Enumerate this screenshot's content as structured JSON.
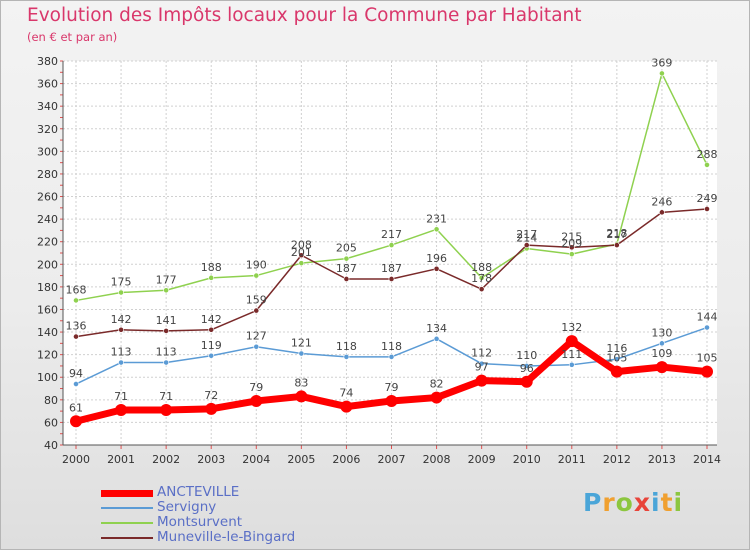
{
  "header": {
    "title": "Evolution des Impôts locaux pour la Commune par Habitant",
    "subtitle": "(en € et par an)"
  },
  "brand": {
    "text": "Proxiti",
    "letter_colors": [
      "#4aa5d8",
      "#f0a030",
      "#8cc63f",
      "#e8443a",
      "#4aa5d8",
      "#f0a030",
      "#8cc63f"
    ]
  },
  "chart_data": {
    "type": "line",
    "title": "Evolution des Impôts locaux pour la Commune par Habitant",
    "subtitle": "(en € et par an)",
    "x": [
      "2000",
      "2001",
      "2002",
      "2003",
      "2004",
      "2005",
      "2006",
      "2007",
      "2008",
      "2009",
      "2010",
      "2011",
      "2012",
      "2013",
      "2014"
    ],
    "ylim": [
      40,
      380
    ],
    "yticks": [
      40,
      60,
      80,
      100,
      120,
      140,
      160,
      180,
      200,
      220,
      240,
      260,
      280,
      300,
      320,
      340,
      360,
      380
    ],
    "grid": true,
    "legend_position": "bottom-left",
    "series": [
      {
        "name": "Montsurvent",
        "color": "#8fd14f",
        "width": 1.5,
        "marker": 2.6,
        "values": [
          168,
          175,
          177,
          188,
          190,
          201,
          205,
          217,
          231,
          188,
          214,
          209,
          218,
          369,
          288
        ],
        "labels": [
          "168",
          "175",
          "177",
          "188",
          "190",
          "201",
          "205",
          "217",
          "231",
          "188",
          "214",
          "209",
          "218",
          "369",
          "288"
        ]
      },
      {
        "name": "Servigny",
        "color": "#5b9bd5",
        "width": 1.5,
        "marker": 2.6,
        "values": [
          94,
          113,
          113,
          119,
          127,
          121,
          118,
          118,
          134,
          112,
          110,
          111,
          116,
          130,
          144
        ],
        "labels": [
          "94",
          "113",
          "113",
          "119",
          "127",
          "121",
          "118",
          "118",
          "134",
          "112",
          "110",
          "111",
          "116",
          "130",
          "144"
        ]
      },
      {
        "name": "Muneville-le-Bingard",
        "color": "#7a2a2a",
        "width": 1.5,
        "marker": 2.6,
        "values": [
          136,
          142,
          141,
          142,
          159,
          208,
          187,
          187,
          196,
          178,
          217,
          215,
          217,
          246,
          249
        ],
        "labels": [
          "136",
          "142",
          "141",
          "142",
          "159",
          "208",
          "187",
          "187",
          "196",
          "178",
          "217",
          "215",
          "217",
          "246",
          "249"
        ]
      },
      {
        "name": "ANCTEVILLE",
        "color": "#ff0000",
        "width": 7,
        "marker": 6,
        "values": [
          61,
          71,
          71,
          72,
          79,
          83,
          74,
          79,
          82,
          97,
          96,
          132,
          105,
          109,
          105
        ],
        "labels": [
          "61",
          "71",
          "71",
          "72",
          "79",
          "83",
          "74",
          "79",
          "82",
          "97",
          "96",
          "132",
          "105",
          "109",
          "105"
        ]
      }
    ]
  },
  "legend": {
    "items": [
      {
        "name": "ANCTEVILLE",
        "color": "#ff0000",
        "width": 7
      },
      {
        "name": "Servigny",
        "color": "#5b9bd5",
        "width": 2
      },
      {
        "name": "Montsurvent",
        "color": "#8fd14f",
        "width": 2
      },
      {
        "name": "Muneville-le-Bingard",
        "color": "#7a2a2a",
        "width": 2
      }
    ]
  }
}
